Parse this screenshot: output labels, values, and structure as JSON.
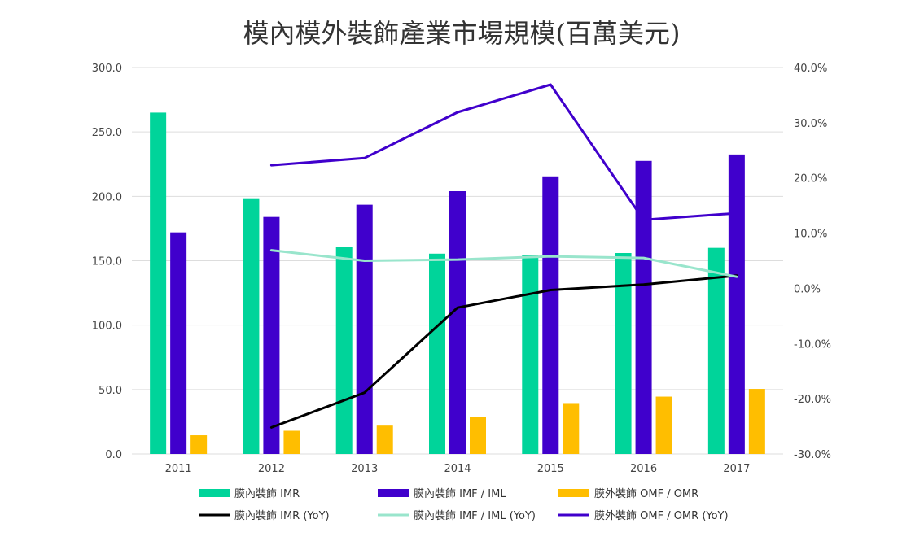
{
  "chart_data": {
    "type": "bar",
    "title": "模內模外裝飾產業市場規模(百萬美元)",
    "categories": [
      "2011",
      "2012",
      "2013",
      "2014",
      "2015",
      "2016",
      "2017"
    ],
    "y_left": {
      "range": [
        0,
        300
      ],
      "ticks": [
        "300.0",
        "250.0",
        "200.0",
        "150.0",
        "100.0",
        "50.0",
        "0.0"
      ],
      "tick_values": [
        300,
        250,
        200,
        150,
        100,
        50,
        0
      ]
    },
    "y_right": {
      "range": [
        -30,
        40
      ],
      "ticks": [
        "40.0%",
        "30.0%",
        "20.0%",
        "10.0%",
        "0.0%",
        "-10.0%",
        "-20.0%",
        "-30.0%"
      ],
      "tick_values": [
        40,
        30,
        20,
        10,
        0,
        -10,
        -20,
        -30
      ]
    },
    "grid": true,
    "legend_position": "bottom",
    "bar_series": [
      {
        "name": "膜內裝飾 IMR",
        "color": "#00D49A",
        "values": [
          265,
          198.5,
          161,
          155.5,
          154.5,
          156,
          160
        ]
      },
      {
        "name": "膜內裝飾 IMF / IML",
        "color": "#4000CC",
        "values": [
          172,
          184,
          193.5,
          204,
          215.5,
          227.5,
          232.5
        ]
      },
      {
        "name": "膜外裝飾 OMF / OMR",
        "color": "#FFBE00",
        "values": [
          14.5,
          18,
          22,
          29,
          39.5,
          44.5,
          50.5
        ]
      }
    ],
    "line_series": [
      {
        "name": "膜內裝飾 IMR (YoY)",
        "color": "#000000",
        "axis": "right",
        "values": [
          null,
          -25.2,
          -18.9,
          -3.5,
          -0.3,
          0.7,
          2.3
        ]
      },
      {
        "name": "膜內裝飾 IMF / IML (YoY)",
        "color": "#99E5CC",
        "axis": "right",
        "values": [
          null,
          6.9,
          5.0,
          5.2,
          5.8,
          5.5,
          2.1
        ]
      },
      {
        "name": "膜外裝飾 OMF / OMR (YoY)",
        "color": "#4000CC",
        "axis": "right",
        "values": [
          null,
          22.3,
          23.6,
          31.9,
          36.9,
          12.4,
          13.6
        ]
      }
    ]
  }
}
